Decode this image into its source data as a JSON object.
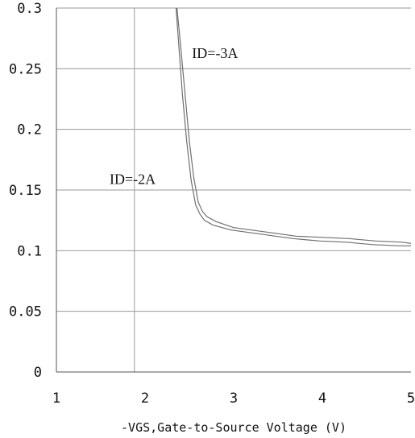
{
  "chart_data": {
    "type": "line",
    "title": "",
    "xlabel": "-VGS,Gate-to-Source Voltage (V)",
    "ylabel": "",
    "xlim": [
      1,
      5
    ],
    "ylim": [
      0,
      0.3
    ],
    "x_ticks": [
      1,
      2,
      3,
      4,
      5
    ],
    "x_tick_labels": [
      "1",
      "2",
      "3",
      "4",
      "5"
    ],
    "y_ticks": [
      0,
      0.05,
      0.1,
      0.15,
      0.2,
      0.25,
      0.3
    ],
    "y_tick_labels": [
      "0",
      "0.05",
      "0.1",
      "0.15",
      "0.2",
      "0.25",
      "0.3"
    ],
    "grid": "horizontal gridlines plus one vertical line near x=1.9",
    "reference_vline_x": 1.88,
    "series": [
      {
        "name": "ID=-3A",
        "color": "#6f6f6f",
        "x": [
          2.36,
          2.4,
          2.45,
          2.5,
          2.55,
          2.6,
          2.65,
          2.7,
          2.8,
          3.0,
          3.3,
          3.5,
          3.7,
          4.0,
          4.3,
          4.6,
          4.9,
          5.0
        ],
        "y": [
          0.3,
          0.27,
          0.23,
          0.19,
          0.16,
          0.14,
          0.132,
          0.128,
          0.124,
          0.119,
          0.116,
          0.114,
          0.112,
          0.111,
          0.11,
          0.108,
          0.107,
          0.106
        ]
      },
      {
        "name": "ID=-2A",
        "color": "#6f6f6f",
        "x": [
          2.35,
          2.38,
          2.42,
          2.47,
          2.52,
          2.57,
          2.62,
          2.67,
          2.77,
          2.97,
          3.27,
          3.47,
          3.67,
          3.97,
          4.27,
          4.57,
          4.87,
          5.0
        ],
        "y": [
          0.3,
          0.27,
          0.23,
          0.19,
          0.158,
          0.138,
          0.13,
          0.125,
          0.121,
          0.117,
          0.114,
          0.112,
          0.11,
          0.108,
          0.107,
          0.105,
          0.104,
          0.104
        ]
      }
    ],
    "annotations": [
      {
        "text": "ID=-3A",
        "x": 2.53,
        "y": 0.259
      },
      {
        "text": "ID=-2A",
        "x": 1.6,
        "y": 0.155
      }
    ]
  }
}
